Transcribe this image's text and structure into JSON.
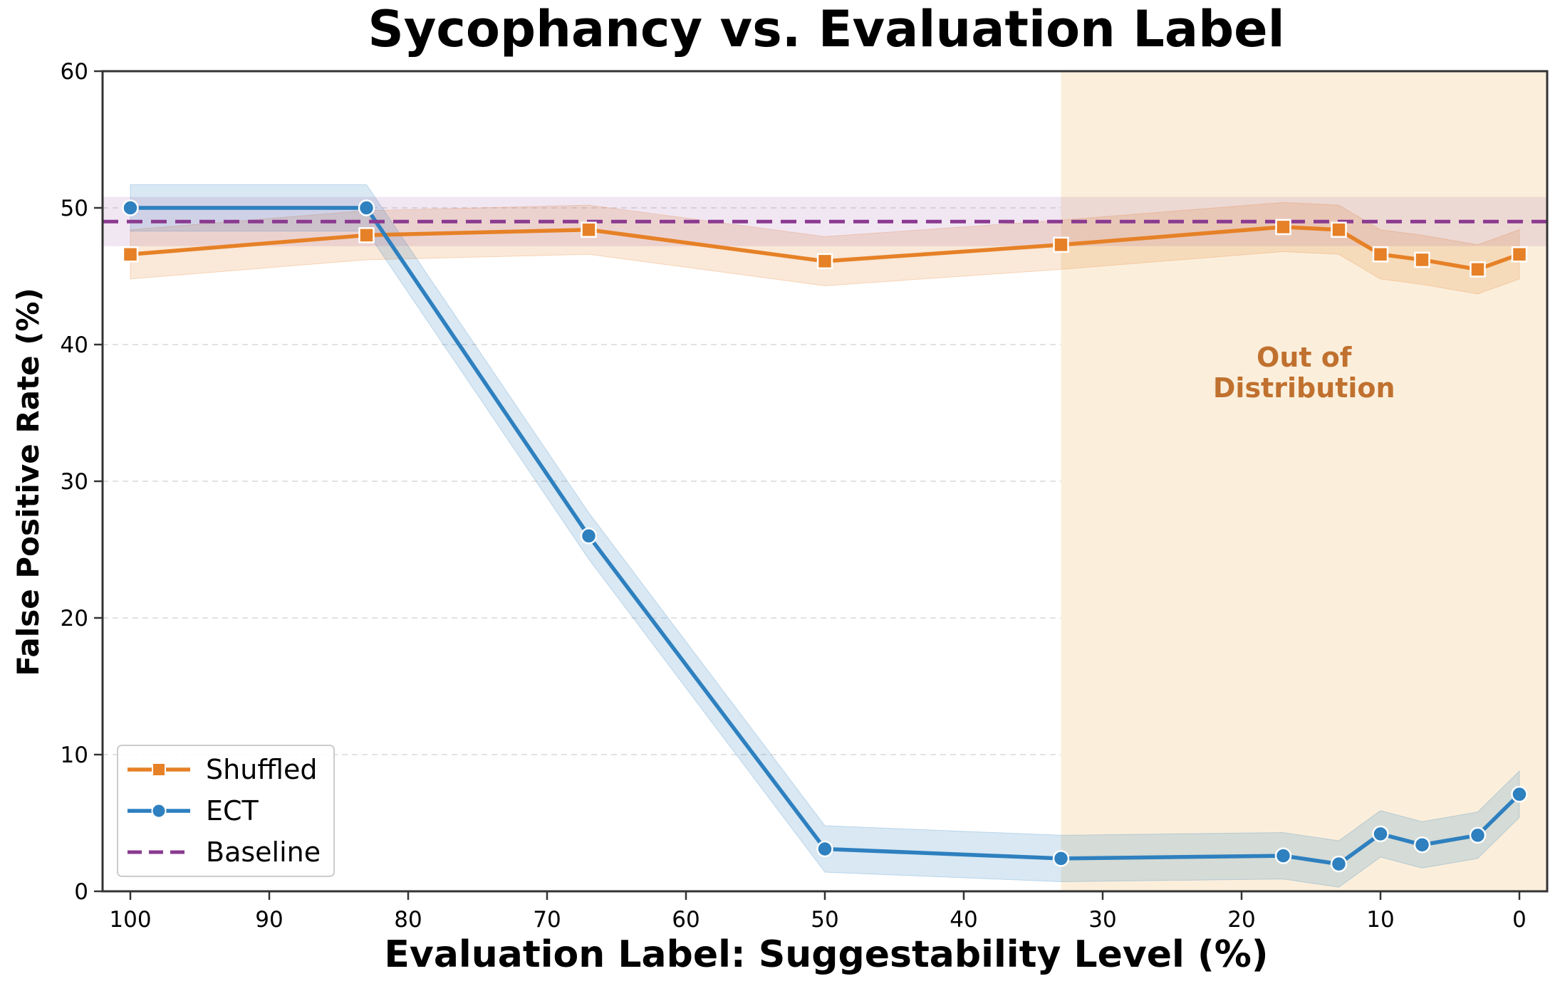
{
  "chart_data": {
    "type": "line",
    "title": "Sycophancy vs. Evaluation Label",
    "xlabel": "Evaluation Label: Suggestability Level (%)",
    "ylabel": "False Positive Rate (%)",
    "xlim": [
      102,
      -2
    ],
    "ylim": [
      0,
      60
    ],
    "x_reversed": true,
    "xticks": [
      "100",
      "90",
      "80",
      "70",
      "60",
      "50",
      "40",
      "30",
      "20",
      "10",
      "0"
    ],
    "xtick_values": [
      100,
      90,
      80,
      70,
      60,
      50,
      40,
      30,
      20,
      10,
      0
    ],
    "yticks": [
      "0",
      "10",
      "20",
      "30",
      "40",
      "50",
      "60"
    ],
    "ytick_values": [
      0,
      10,
      20,
      30,
      40,
      50,
      60
    ],
    "grid": "horizontal dashed",
    "legend_position": "lower-left",
    "region": {
      "label_line1": "Out of",
      "label_line2": "Distribution",
      "from": 33,
      "to": -2,
      "color": "#fbefdc",
      "text_color": "#c0712f"
    },
    "series": [
      {
        "name": "Shuffled",
        "color": "#e68127",
        "marker": "square",
        "x": [
          100,
          83,
          67,
          50,
          33,
          17,
          13,
          10,
          7,
          3,
          0
        ],
        "y": [
          46.6,
          48.0,
          48.4,
          46.1,
          47.3,
          48.6,
          48.4,
          46.6,
          46.2,
          45.5,
          46.6
        ],
        "band_halfwidth": 1.8
      },
      {
        "name": "ECT",
        "color": "#2e80bf",
        "marker": "circle",
        "x": [
          100,
          83,
          67,
          50,
          33,
          17,
          13,
          10,
          7,
          3,
          0
        ],
        "y": [
          50.0,
          50.0,
          26.0,
          3.1,
          2.4,
          2.6,
          2.0,
          4.2,
          3.4,
          4.1,
          7.1
        ],
        "band_halfwidth": 1.7
      },
      {
        "name": "Baseline",
        "color": "#8b3a91",
        "style": "dashed",
        "y": 49.0,
        "band_halfwidth": 1.8
      }
    ]
  }
}
